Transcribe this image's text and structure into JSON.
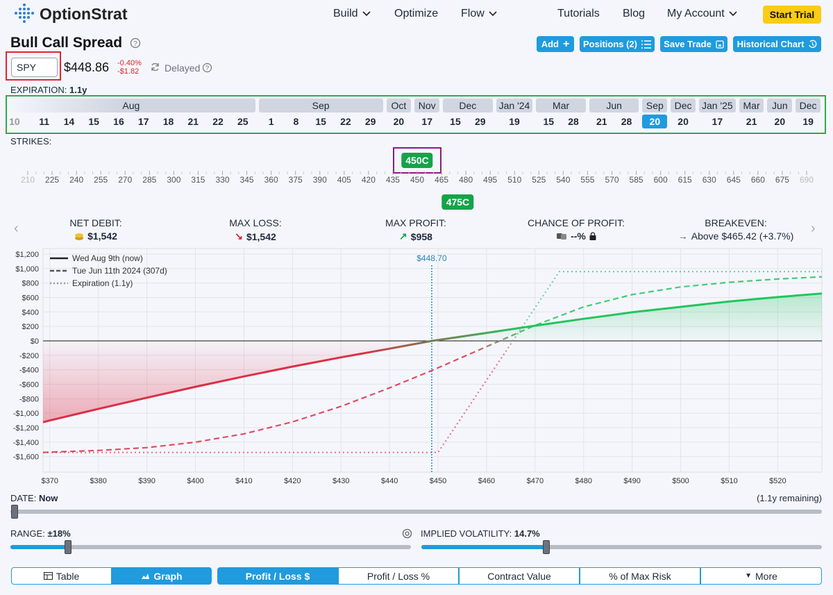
{
  "nav": {
    "logo": "OptionStrat",
    "links": [
      "Build",
      "Optimize",
      "Flow",
      "Tutorials",
      "Blog",
      "My Account"
    ],
    "cta": "Start Trial"
  },
  "header": {
    "title": "Bull Call Spread",
    "ticker": "SPY",
    "price": "$448.86",
    "change_pct": "-0.40%",
    "change_abs": "-$1.82",
    "status": "Delayed",
    "actions": [
      "Add",
      "Positions (2)",
      "Save Trade",
      "Historical Chart"
    ]
  },
  "expiration": {
    "label": "EXPIRATION:",
    "value": "1.1y",
    "months": [
      {
        "name": "Aug",
        "days": [
          "10",
          "11",
          "14",
          "15",
          "16",
          "17",
          "18",
          "21",
          "22",
          "25"
        ]
      },
      {
        "name": "Sep",
        "days": [
          "1",
          "8",
          "15",
          "22",
          "29"
        ]
      },
      {
        "name": "Oct",
        "days": [
          "20"
        ]
      },
      {
        "name": "Nov",
        "days": [
          "17"
        ]
      },
      {
        "name": "Dec",
        "days": [
          "15",
          "29"
        ]
      },
      {
        "name": "Jan '24",
        "days": [
          "19"
        ]
      },
      {
        "name": "Mar",
        "days": [
          "15",
          "28"
        ]
      },
      {
        "name": "Jun",
        "days": [
          "21",
          "28"
        ]
      },
      {
        "name": "Sep",
        "days": [
          "20"
        ]
      },
      {
        "name": "Dec",
        "days": [
          "20"
        ]
      },
      {
        "name": "Jan '25",
        "days": [
          "17"
        ]
      },
      {
        "name": "Mar",
        "days": [
          "21"
        ]
      },
      {
        "name": "Jun",
        "days": [
          "20"
        ]
      },
      {
        "name": "Dec",
        "days": [
          "19"
        ]
      }
    ],
    "selected": {
      "month": 8,
      "day": 0
    }
  },
  "strikes": {
    "label": "STRIKES:",
    "ticks": [
      210,
      225,
      240,
      255,
      270,
      285,
      300,
      315,
      330,
      345,
      360,
      375,
      390,
      405,
      420,
      435,
      450,
      465,
      480,
      495,
      510,
      525,
      540,
      555,
      570,
      585,
      600,
      615,
      630,
      645,
      660,
      675,
      690
    ],
    "legs": [
      {
        "label": "450C",
        "strike": 450,
        "position": "above"
      },
      {
        "label": "475C",
        "strike": 475,
        "position": "below"
      }
    ]
  },
  "stats": [
    {
      "label": "NET DEBIT:",
      "value": "$1,542"
    },
    {
      "label": "MAX LOSS:",
      "value": "$1,542"
    },
    {
      "label": "MAX PROFIT:",
      "value": "$958"
    },
    {
      "label": "CHANCE OF PROFIT:",
      "value": "--%"
    },
    {
      "label": "BREAKEVEN:",
      "value": "Above $465.42 (+3.7%)"
    }
  ],
  "chart_data": {
    "type": "line",
    "xlim": [
      368.6,
      529.1
    ],
    "ylim": [
      -1814,
      1276
    ],
    "xticks": [
      {
        "value": 370,
        "label": "$370"
      },
      {
        "value": 380,
        "label": "$380"
      },
      {
        "value": 390,
        "label": "$390"
      },
      {
        "value": 400,
        "label": "$400"
      },
      {
        "value": 410,
        "label": "$410"
      },
      {
        "value": 420,
        "label": "$420"
      },
      {
        "value": 430,
        "label": "$430"
      },
      {
        "value": 440,
        "label": "$440"
      },
      {
        "value": 450,
        "label": "$450"
      },
      {
        "value": 460,
        "label": "$460"
      },
      {
        "value": 470,
        "label": "$470"
      },
      {
        "value": 480,
        "label": "$480"
      },
      {
        "value": 490,
        "label": "$490"
      },
      {
        "value": 500,
        "label": "$500"
      },
      {
        "value": 510,
        "label": "$510"
      },
      {
        "value": 520,
        "label": "$520"
      }
    ],
    "yticks": [
      {
        "value": 1200,
        "label": "$1,200"
      },
      {
        "value": 1000,
        "label": "$1,000"
      },
      {
        "value": 800,
        "label": "$800"
      },
      {
        "value": 600,
        "label": "$600"
      },
      {
        "value": 400,
        "label": "$400"
      },
      {
        "value": 200,
        "label": "$200"
      },
      {
        "value": 0,
        "label": "$0"
      },
      {
        "value": -200,
        "label": "-$200"
      },
      {
        "value": -400,
        "label": "-$400"
      },
      {
        "value": -600,
        "label": "-$600"
      },
      {
        "value": -800,
        "label": "-$800"
      },
      {
        "value": -1000,
        "label": "-$1,000"
      },
      {
        "value": -1200,
        "label": "-$1,200"
      },
      {
        "value": -1400,
        "label": "-$1,400"
      },
      {
        "value": -1600,
        "label": "-$1,600"
      }
    ],
    "grid": true,
    "legend": "top-left",
    "positive_color": "#22c55e",
    "negative_color": "#dc2f45",
    "price_marker": {
      "value": 448.7,
      "label": "$448.70",
      "color": "#2a86c2"
    },
    "series": [
      {
        "name": "Wed Aug 9th (now)",
        "color": "#222222",
        "style": "solid",
        "fill": true,
        "x": [
          368.6,
          370,
          380,
          390,
          400,
          410,
          420,
          430,
          440,
          448.7,
          460,
          470,
          480,
          490,
          500,
          510,
          520,
          529.1
        ],
        "values": [
          -1125,
          -1100,
          -940,
          -785,
          -635,
          -492,
          -355,
          -228,
          -108,
          0,
          110,
          210,
          305,
          395,
          470,
          545,
          605,
          655
        ]
      },
      {
        "name": "Tue Jun 11th 2024 (307d)",
        "color": "#555555",
        "style": "dashed",
        "fill": false,
        "x": [
          368.6,
          370,
          380,
          390,
          400,
          410,
          420,
          430,
          440,
          448.7,
          460,
          470,
          480,
          490,
          500,
          510,
          520,
          529.1
        ],
        "values": [
          -1542,
          -1538,
          -1515,
          -1475,
          -1400,
          -1285,
          -1120,
          -905,
          -650,
          -410,
          -80,
          215,
          470,
          640,
          745,
          810,
          855,
          885
        ]
      },
      {
        "name": "Expiration (1.1y)",
        "color": "#999999",
        "style": "dotted",
        "fill": false,
        "x": [
          368.6,
          450,
          475,
          529.1
        ],
        "values": [
          -1542,
          -1542,
          958,
          958
        ]
      }
    ]
  },
  "controls": {
    "date": {
      "label": "DATE:",
      "value": "Now",
      "remaining": "(1.1y remaining)"
    },
    "range": {
      "label": "RANGE:",
      "value": "±18%"
    },
    "iv": {
      "label": "IMPLIED VOLATILITY:",
      "value": "14.7%"
    }
  },
  "tabs": {
    "views": [
      "Table",
      "Graph"
    ],
    "active_view": 1,
    "metrics": [
      "Profit / Loss $",
      "Profit / Loss %",
      "Contract Value",
      "% of Max Risk",
      "More"
    ],
    "active_metric": 0
  }
}
